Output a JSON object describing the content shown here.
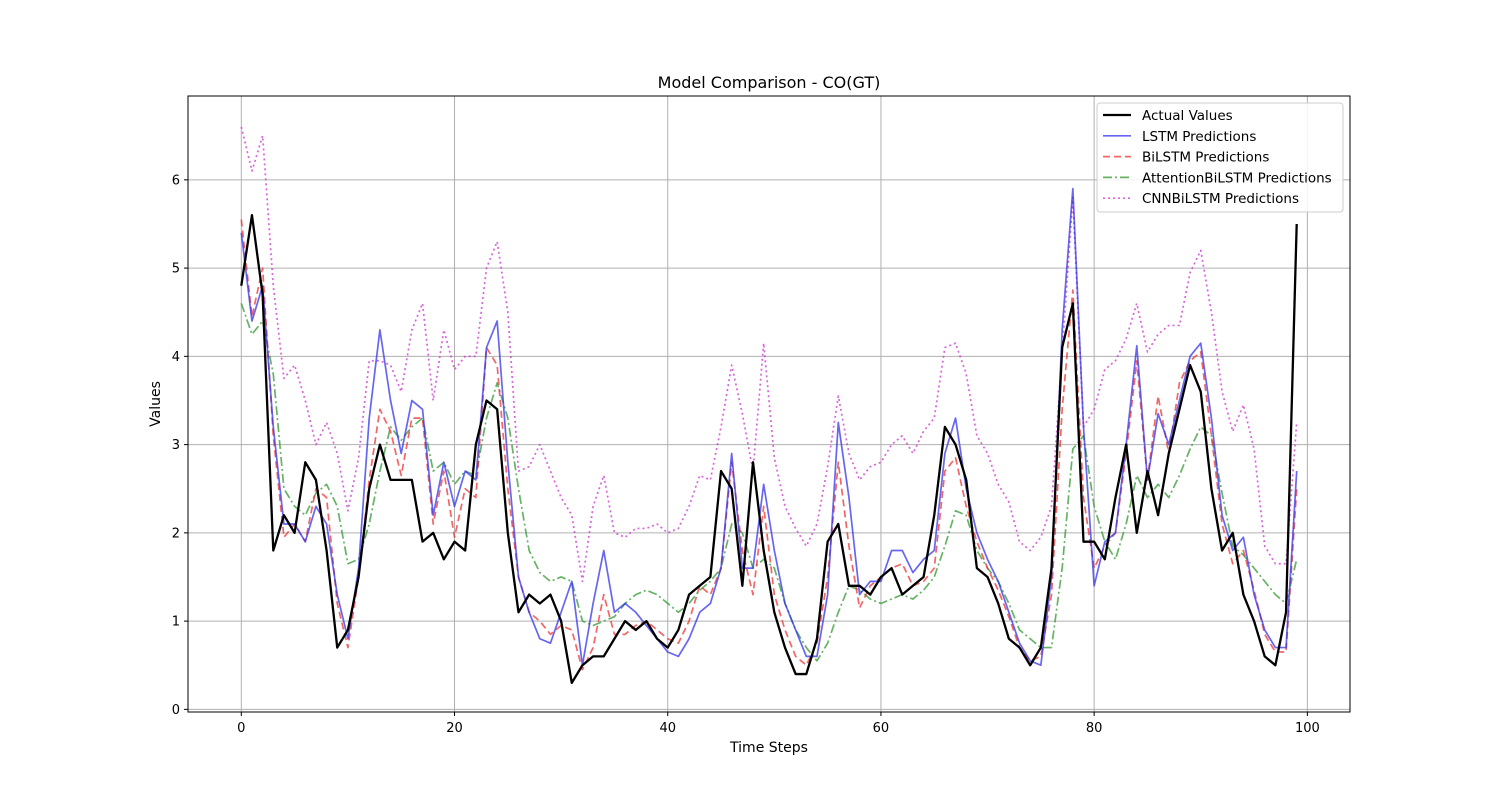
{
  "chart_data": {
    "type": "line",
    "title": "Model Comparison - CO(GT)",
    "xlabel": "Time Steps",
    "ylabel": "Values",
    "xlim": [
      -5,
      104
    ],
    "ylim": [
      -0.03,
      6.95
    ],
    "xticks": [
      0,
      20,
      40,
      60,
      80,
      100
    ],
    "yticks": [
      0,
      1,
      2,
      3,
      4,
      5,
      6
    ],
    "grid": true,
    "legend_position": "top-right",
    "series": [
      {
        "name": "Actual Values",
        "color": "#000000",
        "style": "solid",
        "values": [
          4.8,
          5.6,
          4.7,
          1.8,
          2.2,
          2.0,
          2.8,
          2.6,
          1.8,
          0.7,
          0.9,
          1.5,
          2.5,
          3.0,
          2.6,
          2.6,
          2.6,
          1.9,
          2.0,
          1.7,
          1.9,
          1.8,
          3.0,
          3.5,
          3.4,
          2.0,
          1.1,
          1.3,
          1.2,
          1.3,
          1.0,
          0.3,
          0.5,
          0.6,
          0.6,
          0.8,
          1.0,
          0.9,
          1.0,
          0.8,
          0.7,
          0.9,
          1.3,
          1.4,
          1.5,
          2.7,
          2.5,
          1.4,
          2.8,
          1.8,
          1.1,
          0.7,
          0.4,
          0.4,
          0.8,
          1.9,
          2.1,
          1.4,
          1.4,
          1.3,
          1.5,
          1.6,
          1.3,
          1.4,
          1.5,
          2.2,
          3.2,
          3.0,
          2.6,
          1.6,
          1.5,
          1.2,
          0.8,
          0.7,
          0.5,
          0.7,
          1.6,
          4.1,
          4.6,
          1.9,
          1.9,
          1.7,
          2.4,
          3.0,
          2.0,
          2.7,
          2.2,
          2.9,
          3.4,
          3.9,
          3.6,
          2.5,
          1.8,
          2.0,
          1.3,
          1.0,
          0.6,
          0.5,
          1.1,
          5.5
        ]
      },
      {
        "name": "LSTM Predictions",
        "color": "#3333ee",
        "style": "solid",
        "values": [
          5.4,
          4.4,
          4.8,
          3.2,
          2.1,
          2.1,
          1.9,
          2.3,
          2.1,
          1.3,
          0.8,
          1.6,
          3.3,
          4.3,
          3.5,
          2.9,
          3.5,
          3.4,
          2.2,
          2.8,
          2.3,
          2.7,
          2.6,
          4.1,
          4.4,
          2.8,
          1.5,
          1.1,
          0.8,
          0.75,
          1.1,
          1.45,
          0.5,
          1.2,
          1.8,
          1.1,
          1.2,
          1.1,
          0.95,
          0.8,
          0.65,
          0.6,
          0.8,
          1.1,
          1.2,
          1.6,
          2.9,
          1.6,
          1.6,
          2.55,
          1.8,
          1.2,
          0.9,
          0.6,
          0.6,
          1.3,
          3.25,
          2.4,
          1.3,
          1.45,
          1.45,
          1.8,
          1.8,
          1.55,
          1.7,
          1.8,
          2.9,
          3.3,
          2.5,
          2.0,
          1.7,
          1.45,
          1.1,
          0.75,
          0.55,
          0.5,
          1.5,
          4.3,
          5.9,
          3.2,
          1.4,
          1.9,
          2.0,
          3.0,
          4.12,
          2.6,
          3.35,
          3.0,
          3.5,
          4.0,
          4.15,
          3.3,
          2.2,
          1.8,
          1.95,
          1.3,
          0.9,
          0.7,
          0.7,
          2.7
        ]
      },
      {
        "name": "BiLSTM Predictions",
        "color": "#ee3333",
        "style": "dashed",
        "values": [
          5.55,
          4.45,
          5.0,
          3.1,
          1.95,
          2.1,
          1.9,
          2.5,
          2.4,
          1.2,
          0.7,
          1.5,
          2.6,
          3.4,
          3.15,
          2.65,
          3.3,
          3.3,
          2.1,
          2.7,
          1.95,
          2.5,
          2.4,
          4.1,
          3.9,
          2.5,
          1.5,
          1.1,
          1.0,
          0.85,
          0.95,
          0.9,
          0.45,
          0.7,
          1.3,
          0.85,
          0.85,
          0.95,
          1.0,
          0.9,
          0.8,
          0.75,
          1.0,
          1.4,
          1.3,
          1.6,
          2.8,
          1.8,
          1.3,
          2.3,
          1.3,
          0.9,
          0.6,
          0.5,
          0.75,
          1.5,
          2.8,
          1.85,
          1.15,
          1.4,
          1.5,
          1.6,
          1.65,
          1.4,
          1.45,
          1.6,
          2.7,
          2.85,
          2.3,
          1.9,
          1.6,
          1.35,
          1.05,
          0.7,
          0.55,
          0.6,
          1.3,
          3.4,
          4.75,
          2.4,
          1.6,
          1.85,
          2.0,
          2.9,
          3.95,
          2.6,
          3.55,
          2.9,
          3.7,
          3.95,
          4.05,
          3.1,
          2.1,
          1.65,
          1.8,
          1.35,
          0.85,
          0.65,
          0.65,
          2.5
        ]
      },
      {
        "name": "AttentionBiLSTM Predictions",
        "color": "#339933",
        "style": "dashdot",
        "values": [
          4.6,
          4.25,
          4.4,
          3.8,
          2.5,
          2.3,
          2.2,
          2.45,
          2.55,
          2.3,
          1.65,
          1.7,
          2.1,
          2.7,
          3.2,
          3.05,
          3.2,
          3.3,
          2.7,
          2.8,
          2.55,
          2.7,
          2.65,
          3.3,
          3.7,
          3.3,
          2.5,
          1.8,
          1.55,
          1.45,
          1.5,
          1.45,
          1.0,
          0.95,
          1.0,
          1.05,
          1.2,
          1.3,
          1.35,
          1.3,
          1.2,
          1.1,
          1.2,
          1.35,
          1.45,
          1.6,
          2.1,
          2.0,
          1.6,
          1.7,
          1.6,
          1.2,
          0.9,
          0.7,
          0.55,
          0.75,
          1.1,
          1.4,
          1.35,
          1.25,
          1.2,
          1.25,
          1.3,
          1.25,
          1.35,
          1.5,
          1.85,
          2.25,
          2.2,
          1.8,
          1.6,
          1.45,
          1.2,
          0.9,
          0.8,
          0.7,
          0.7,
          1.6,
          2.95,
          3.1,
          2.3,
          1.9,
          1.7,
          2.1,
          2.65,
          2.4,
          2.55,
          2.4,
          2.65,
          2.95,
          3.2,
          3.1,
          2.45,
          1.85,
          1.75,
          1.6,
          1.45,
          1.3,
          1.2,
          1.7
        ]
      },
      {
        "name": "CNNBiLSTM Predictions",
        "color": "#cc33cc",
        "style": "dotted",
        "values": [
          6.6,
          6.1,
          6.5,
          4.8,
          3.75,
          3.9,
          3.5,
          3.0,
          3.25,
          2.9,
          2.25,
          2.85,
          3.95,
          3.95,
          3.9,
          3.6,
          4.3,
          4.6,
          3.5,
          4.3,
          3.85,
          4.0,
          4.0,
          5.0,
          5.3,
          4.5,
          2.7,
          2.75,
          3.0,
          2.7,
          2.4,
          2.2,
          1.45,
          2.3,
          2.65,
          2.0,
          1.95,
          2.05,
          2.05,
          2.1,
          2.0,
          2.05,
          2.3,
          2.65,
          2.6,
          3.2,
          3.9,
          3.35,
          2.7,
          4.15,
          2.85,
          2.3,
          2.05,
          1.85,
          2.1,
          2.75,
          3.55,
          2.9,
          2.6,
          2.75,
          2.8,
          3.0,
          3.1,
          2.9,
          3.15,
          3.3,
          4.1,
          4.15,
          3.8,
          3.1,
          2.9,
          2.55,
          2.35,
          1.9,
          1.8,
          1.95,
          2.3,
          4.05,
          5.8,
          3.2,
          3.4,
          3.85,
          3.95,
          4.2,
          4.6,
          4.05,
          4.25,
          4.35,
          4.35,
          4.95,
          5.2,
          4.5,
          3.6,
          3.15,
          3.45,
          2.95,
          1.85,
          1.65,
          1.65,
          3.25
        ]
      }
    ]
  }
}
